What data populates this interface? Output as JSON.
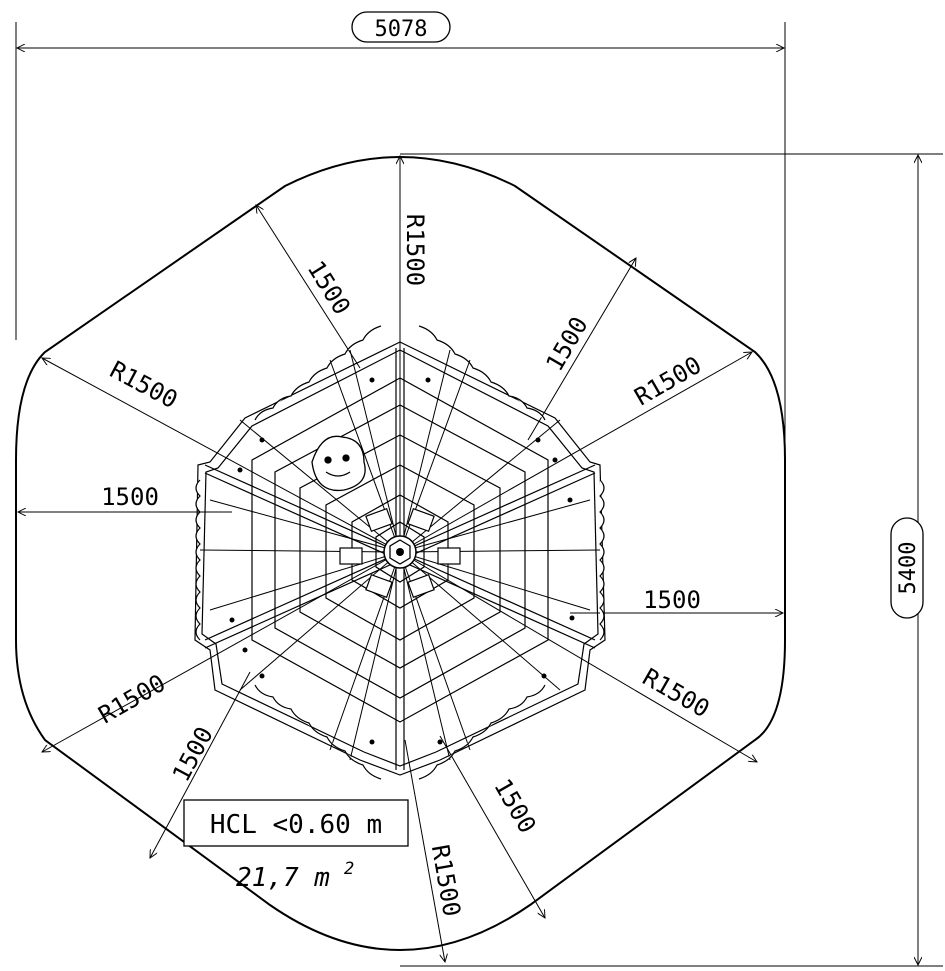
{
  "drawing": {
    "overall_width": "5078",
    "overall_height": "5400",
    "dim_radius_top": "R1500",
    "dim_radius_upper_left": "R1500",
    "dim_radius_upper_right": "R1500",
    "dim_radius_lower_left": "R1500",
    "dim_radius_lower_right": "R1500",
    "dim_radius_bottom": "R1500",
    "dim_upper_left_diag": "1500",
    "dim_upper_right_diag": "1500",
    "dim_left_horizontal": "1500",
    "dim_right_horizontal": "1500",
    "dim_lower_left_diag": "1500",
    "dim_lower_right_diag": "1500",
    "hcl_label": "HCL <0.60 m",
    "area_value": "21,7 m",
    "area_unit_superscript": "2"
  }
}
